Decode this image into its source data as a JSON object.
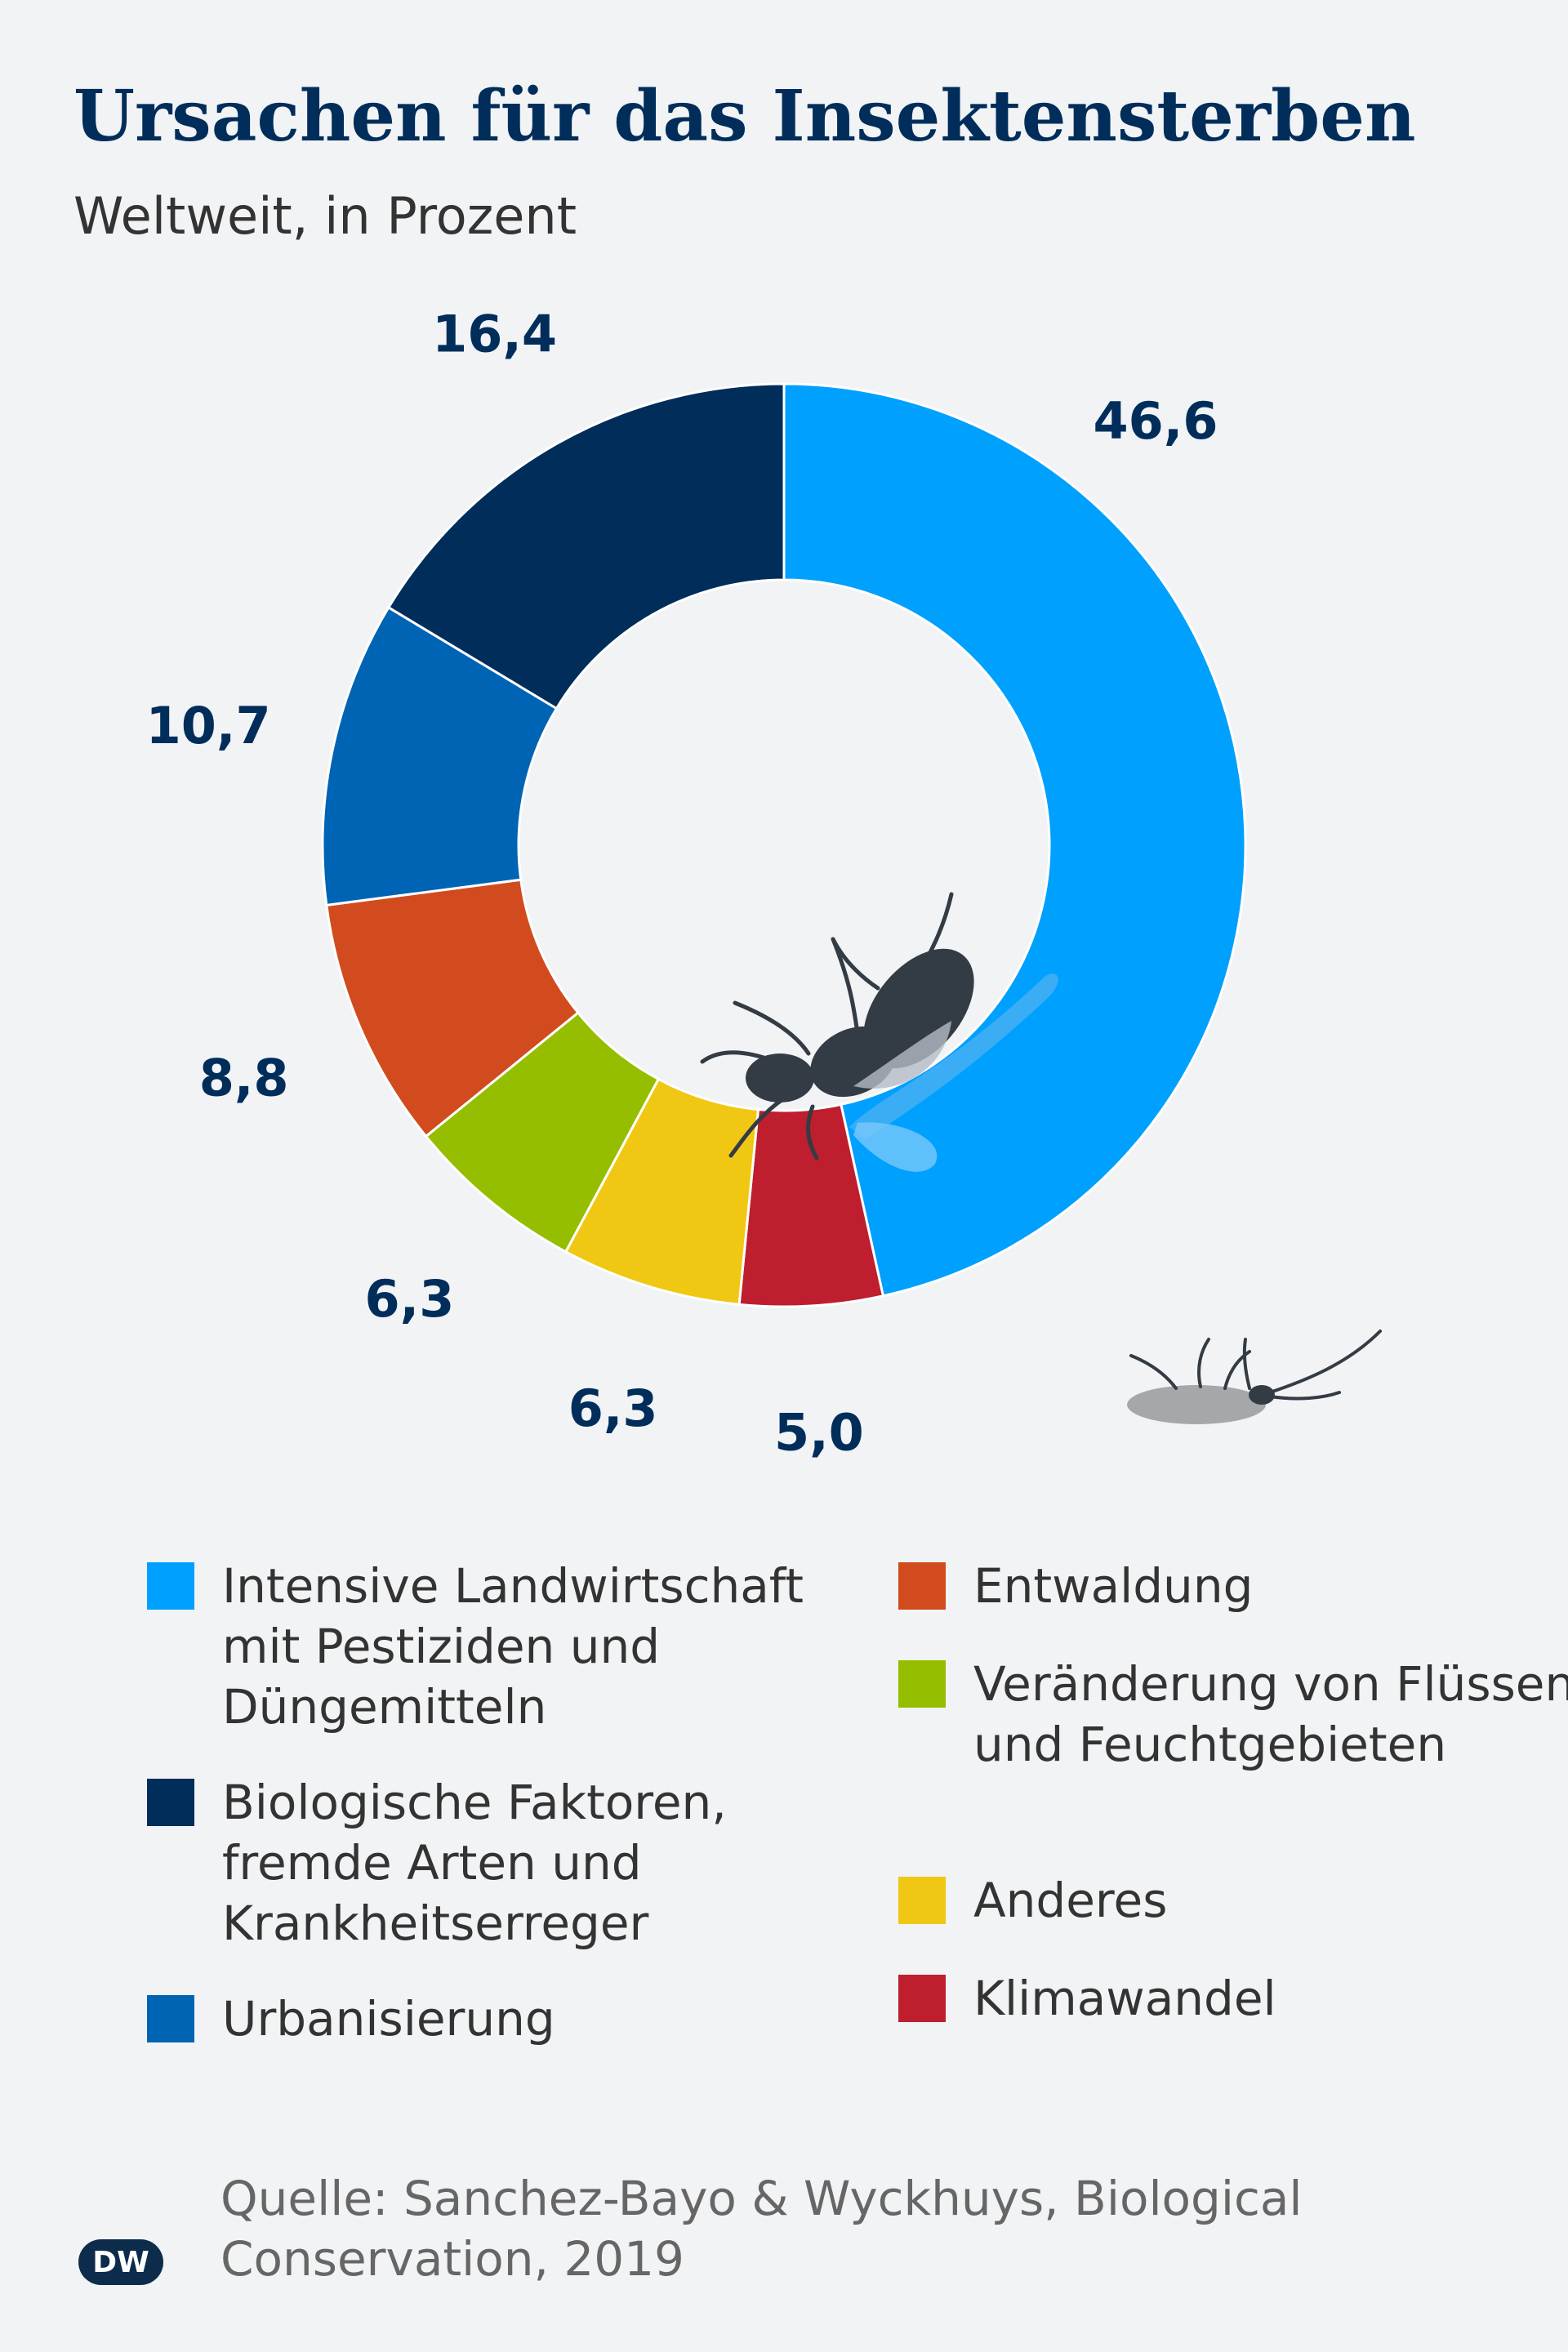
{
  "title": "Ursachen für das Insektensterben",
  "subtitle": "Weltweit, in Prozent",
  "chart_data": {
    "type": "pie",
    "title": "Ursachen für das Insektensterben",
    "subtitle": "Weltweit, in Prozent",
    "unit": "%",
    "donut": true,
    "slices": [
      {
        "label": "Intensive Landwirtschaft mit Pestiziden und Düngemitteln",
        "value": 46.6,
        "value_label": "46,6",
        "color": "#00a0ff"
      },
      {
        "label": "Klimawandel",
        "value": 5.0,
        "value_label": "5,0",
        "color": "#be1e2d"
      },
      {
        "label": "Anderes",
        "value": 6.3,
        "value_label": "6,3",
        "color": "#f0c814"
      },
      {
        "label": "Veränderung von Flüssen und Feuchtgebieten",
        "value": 6.3,
        "value_label": "6,3",
        "color": "#96be00"
      },
      {
        "label": "Entwaldung",
        "value": 8.8,
        "value_label": "8,8",
        "color": "#d24b1e"
      },
      {
        "label": "Urbanisierung",
        "value": 10.7,
        "value_label": "10,7",
        "color": "#0064b4"
      },
      {
        "label": "Biologische Faktoren, fremde Arten und Krankheitserreger",
        "value": 16.4,
        "value_label": "16,4",
        "color": "#002d5a"
      }
    ]
  },
  "legend": [
    {
      "label": "Intensive Landwirtschaft mit Pestiziden und Düngemitteln",
      "color": "#00a0ff"
    },
    {
      "label": "Biologische Faktoren, fremde Arten und Krankheitserreger",
      "color": "#002d5a"
    },
    {
      "label": "Urbanisierung",
      "color": "#0064b4"
    },
    {
      "label": "Entwaldung",
      "color": "#d24b1e"
    },
    {
      "label": "Veränderung von Flüssen und Feuchtgebieten",
      "color": "#96be00"
    },
    {
      "label": "Anderes",
      "color": "#f0c814"
    },
    {
      "label": "Klimawandel",
      "color": "#be1e2d"
    }
  ],
  "source": "Quelle: Sanchez-Bayo & Wyckhuys, Biological Conservation, 2019",
  "logo": "DW"
}
